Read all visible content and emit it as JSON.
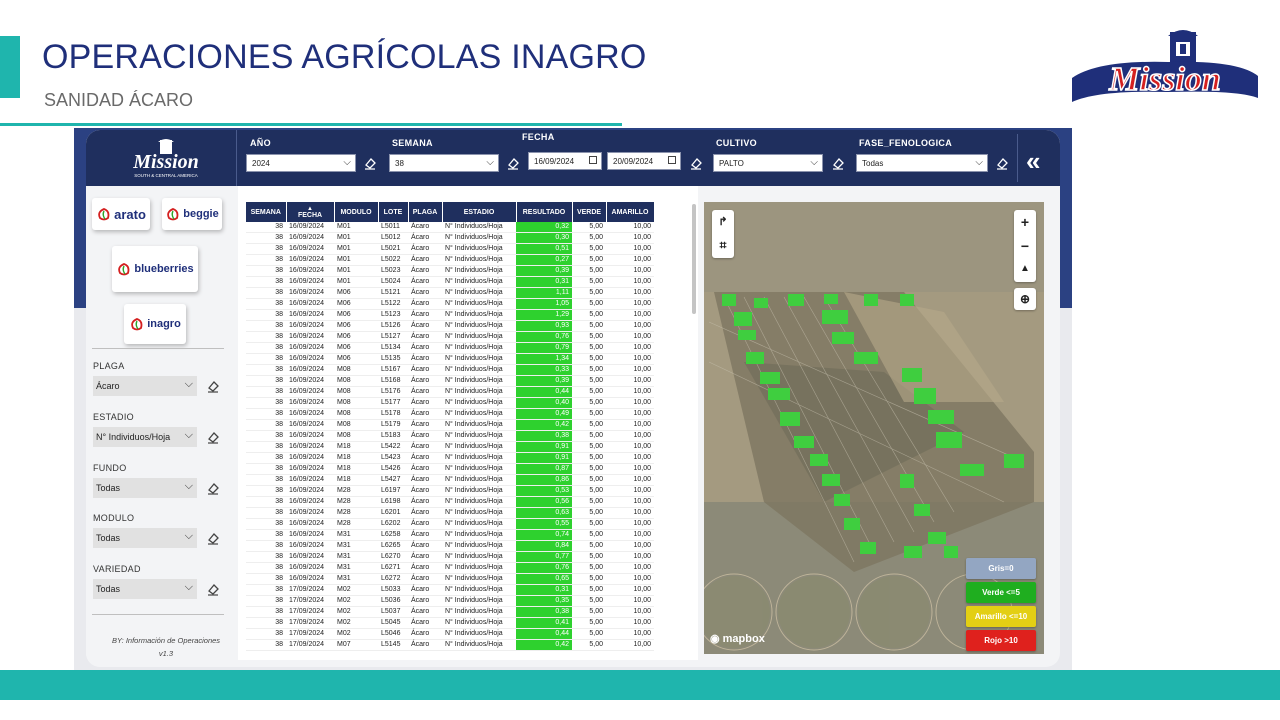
{
  "slide": {
    "title": "OPERACIONES AGRÍCOLAS INAGRO",
    "subtitle": "SANIDAD ÁCARO",
    "brand": "Mission"
  },
  "header": {
    "logo_text": "Mission",
    "logo_sub": "SOUTH & CENTRAL AMERICA",
    "filters": {
      "anio": {
        "label": "AÑO",
        "value": "2024"
      },
      "semana": {
        "label": "SEMANA",
        "value": "38"
      },
      "fecha": {
        "label": "FECHA",
        "from": "16/09/2024",
        "to": "20/09/2024"
      },
      "cultivo": {
        "label": "CULTIVO",
        "value": "PALTO"
      },
      "fase": {
        "label": "FASE_FENOLOGICA",
        "value": "Todas"
      }
    },
    "collapse_icon": "double-chevron-left-icon"
  },
  "sidebar": {
    "brands": [
      "arato",
      "beggie",
      "blueberries",
      "inagro"
    ],
    "filters": [
      {
        "label": "PLAGA",
        "value": "Ácaro"
      },
      {
        "label": "ESTADIO",
        "value": "N° Individuos/Hoja"
      },
      {
        "label": "FUNDO",
        "value": "Todas"
      },
      {
        "label": "MODULO",
        "value": "Todas"
      },
      {
        "label": "VARIEDAD",
        "value": "Todas"
      }
    ],
    "footer": "BY: Información de Operaciones v1.3"
  },
  "table": {
    "columns": [
      "SEMANA",
      "FECHA",
      "MODULO",
      "LOTE",
      "PLAGA",
      "ESTADIO",
      "RESULTADO",
      "VERDE",
      "AMARILLO"
    ],
    "rows": [
      [
        "38",
        "16/09/2024",
        "M01",
        "L5011",
        "Ácaro",
        "N° Individuos/Hoja",
        "0,32",
        "5,00",
        "10,00"
      ],
      [
        "38",
        "16/09/2024",
        "M01",
        "L5012",
        "Ácaro",
        "N° Individuos/Hoja",
        "0,30",
        "5,00",
        "10,00"
      ],
      [
        "38",
        "16/09/2024",
        "M01",
        "L5021",
        "Ácaro",
        "N° Individuos/Hoja",
        "0,51",
        "5,00",
        "10,00"
      ],
      [
        "38",
        "16/09/2024",
        "M01",
        "L5022",
        "Ácaro",
        "N° Individuos/Hoja",
        "0,27",
        "5,00",
        "10,00"
      ],
      [
        "38",
        "16/09/2024",
        "M01",
        "L5023",
        "Ácaro",
        "N° Individuos/Hoja",
        "0,39",
        "5,00",
        "10,00"
      ],
      [
        "38",
        "16/09/2024",
        "M01",
        "L5024",
        "Ácaro",
        "N° Individuos/Hoja",
        "0,31",
        "5,00",
        "10,00"
      ],
      [
        "38",
        "16/09/2024",
        "M06",
        "L5121",
        "Ácaro",
        "N° Individuos/Hoja",
        "1,11",
        "5,00",
        "10,00"
      ],
      [
        "38",
        "16/09/2024",
        "M06",
        "L5122",
        "Ácaro",
        "N° Individuos/Hoja",
        "1,05",
        "5,00",
        "10,00"
      ],
      [
        "38",
        "16/09/2024",
        "M06",
        "L5123",
        "Ácaro",
        "N° Individuos/Hoja",
        "1,29",
        "5,00",
        "10,00"
      ],
      [
        "38",
        "16/09/2024",
        "M06",
        "L5126",
        "Ácaro",
        "N° Individuos/Hoja",
        "0,93",
        "5,00",
        "10,00"
      ],
      [
        "38",
        "16/09/2024",
        "M06",
        "L5127",
        "Ácaro",
        "N° Individuos/Hoja",
        "0,76",
        "5,00",
        "10,00"
      ],
      [
        "38",
        "16/09/2024",
        "M06",
        "L5134",
        "Ácaro",
        "N° Individuos/Hoja",
        "0,79",
        "5,00",
        "10,00"
      ],
      [
        "38",
        "16/09/2024",
        "M06",
        "L5135",
        "Ácaro",
        "N° Individuos/Hoja",
        "1,34",
        "5,00",
        "10,00"
      ],
      [
        "38",
        "16/09/2024",
        "M08",
        "L5167",
        "Ácaro",
        "N° Individuos/Hoja",
        "0,33",
        "5,00",
        "10,00"
      ],
      [
        "38",
        "16/09/2024",
        "M08",
        "L5168",
        "Ácaro",
        "N° Individuos/Hoja",
        "0,39",
        "5,00",
        "10,00"
      ],
      [
        "38",
        "16/09/2024",
        "M08",
        "L5176",
        "Ácaro",
        "N° Individuos/Hoja",
        "0,44",
        "5,00",
        "10,00"
      ],
      [
        "38",
        "16/09/2024",
        "M08",
        "L5177",
        "Ácaro",
        "N° Individuos/Hoja",
        "0,40",
        "5,00",
        "10,00"
      ],
      [
        "38",
        "16/09/2024",
        "M08",
        "L5178",
        "Ácaro",
        "N° Individuos/Hoja",
        "0,49",
        "5,00",
        "10,00"
      ],
      [
        "38",
        "16/09/2024",
        "M08",
        "L5179",
        "Ácaro",
        "N° Individuos/Hoja",
        "0,42",
        "5,00",
        "10,00"
      ],
      [
        "38",
        "16/09/2024",
        "M08",
        "L5183",
        "Ácaro",
        "N° Individuos/Hoja",
        "0,38",
        "5,00",
        "10,00"
      ],
      [
        "38",
        "16/09/2024",
        "M18",
        "L5422",
        "Ácaro",
        "N° Individuos/Hoja",
        "0,91",
        "5,00",
        "10,00"
      ],
      [
        "38",
        "16/09/2024",
        "M18",
        "L5423",
        "Ácaro",
        "N° Individuos/Hoja",
        "0,91",
        "5,00",
        "10,00"
      ],
      [
        "38",
        "16/09/2024",
        "M18",
        "L5426",
        "Ácaro",
        "N° Individuos/Hoja",
        "0,87",
        "5,00",
        "10,00"
      ],
      [
        "38",
        "16/09/2024",
        "M18",
        "L5427",
        "Ácaro",
        "N° Individuos/Hoja",
        "0,86",
        "5,00",
        "10,00"
      ],
      [
        "38",
        "16/09/2024",
        "M28",
        "L6197",
        "Ácaro",
        "N° Individuos/Hoja",
        "0,53",
        "5,00",
        "10,00"
      ],
      [
        "38",
        "16/09/2024",
        "M28",
        "L6198",
        "Ácaro",
        "N° Individuos/Hoja",
        "0,56",
        "5,00",
        "10,00"
      ],
      [
        "38",
        "16/09/2024",
        "M28",
        "L6201",
        "Ácaro",
        "N° Individuos/Hoja",
        "0,63",
        "5,00",
        "10,00"
      ],
      [
        "38",
        "16/09/2024",
        "M28",
        "L6202",
        "Ácaro",
        "N° Individuos/Hoja",
        "0,55",
        "5,00",
        "10,00"
      ],
      [
        "38",
        "16/09/2024",
        "M31",
        "L6258",
        "Ácaro",
        "N° Individuos/Hoja",
        "0,74",
        "5,00",
        "10,00"
      ],
      [
        "38",
        "16/09/2024",
        "M31",
        "L6265",
        "Ácaro",
        "N° Individuos/Hoja",
        "0,84",
        "5,00",
        "10,00"
      ],
      [
        "38",
        "16/09/2024",
        "M31",
        "L6270",
        "Ácaro",
        "N° Individuos/Hoja",
        "0,77",
        "5,00",
        "10,00"
      ],
      [
        "38",
        "16/09/2024",
        "M31",
        "L6271",
        "Ácaro",
        "N° Individuos/Hoja",
        "0,76",
        "5,00",
        "10,00"
      ],
      [
        "38",
        "16/09/2024",
        "M31",
        "L6272",
        "Ácaro",
        "N° Individuos/Hoja",
        "0,65",
        "5,00",
        "10,00"
      ],
      [
        "38",
        "17/09/2024",
        "M02",
        "L5033",
        "Ácaro",
        "N° Individuos/Hoja",
        "0,31",
        "5,00",
        "10,00"
      ],
      [
        "38",
        "17/09/2024",
        "M02",
        "L5036",
        "Ácaro",
        "N° Individuos/Hoja",
        "0,35",
        "5,00",
        "10,00"
      ],
      [
        "38",
        "17/09/2024",
        "M02",
        "L5037",
        "Ácaro",
        "N° Individuos/Hoja",
        "0,38",
        "5,00",
        "10,00"
      ],
      [
        "38",
        "17/09/2024",
        "M02",
        "L5045",
        "Ácaro",
        "N° Individuos/Hoja",
        "0,41",
        "5,00",
        "10,00"
      ],
      [
        "38",
        "17/09/2024",
        "M02",
        "L5046",
        "Ácaro",
        "N° Individuos/Hoja",
        "0,44",
        "5,00",
        "10,00"
      ],
      [
        "38",
        "17/09/2024",
        "M07",
        "L5145",
        "Ácaro",
        "N° Individuos/Hoja",
        "0,42",
        "5,00",
        "10,00"
      ]
    ]
  },
  "map": {
    "attribution": "mapbox",
    "controls": [
      "zoom-in",
      "zoom-out",
      "reset-north",
      "zoom-search"
    ],
    "left_controls": [
      "share",
      "select"
    ],
    "legend": [
      {
        "label": "Gris=0",
        "color": "#8fa3c0"
      },
      {
        "label": "Verde <=5",
        "color": "#22b022"
      },
      {
        "label": "Amarillo <=10",
        "color": "#e8d21a"
      },
      {
        "label": "Rojo >10",
        "color": "#e0231f"
      }
    ]
  },
  "colors": {
    "accent": "#1fb5ad",
    "title_blue": "#1f2f7a",
    "header_navy": "#1f2f5e",
    "result_green": "#2ed12e"
  }
}
